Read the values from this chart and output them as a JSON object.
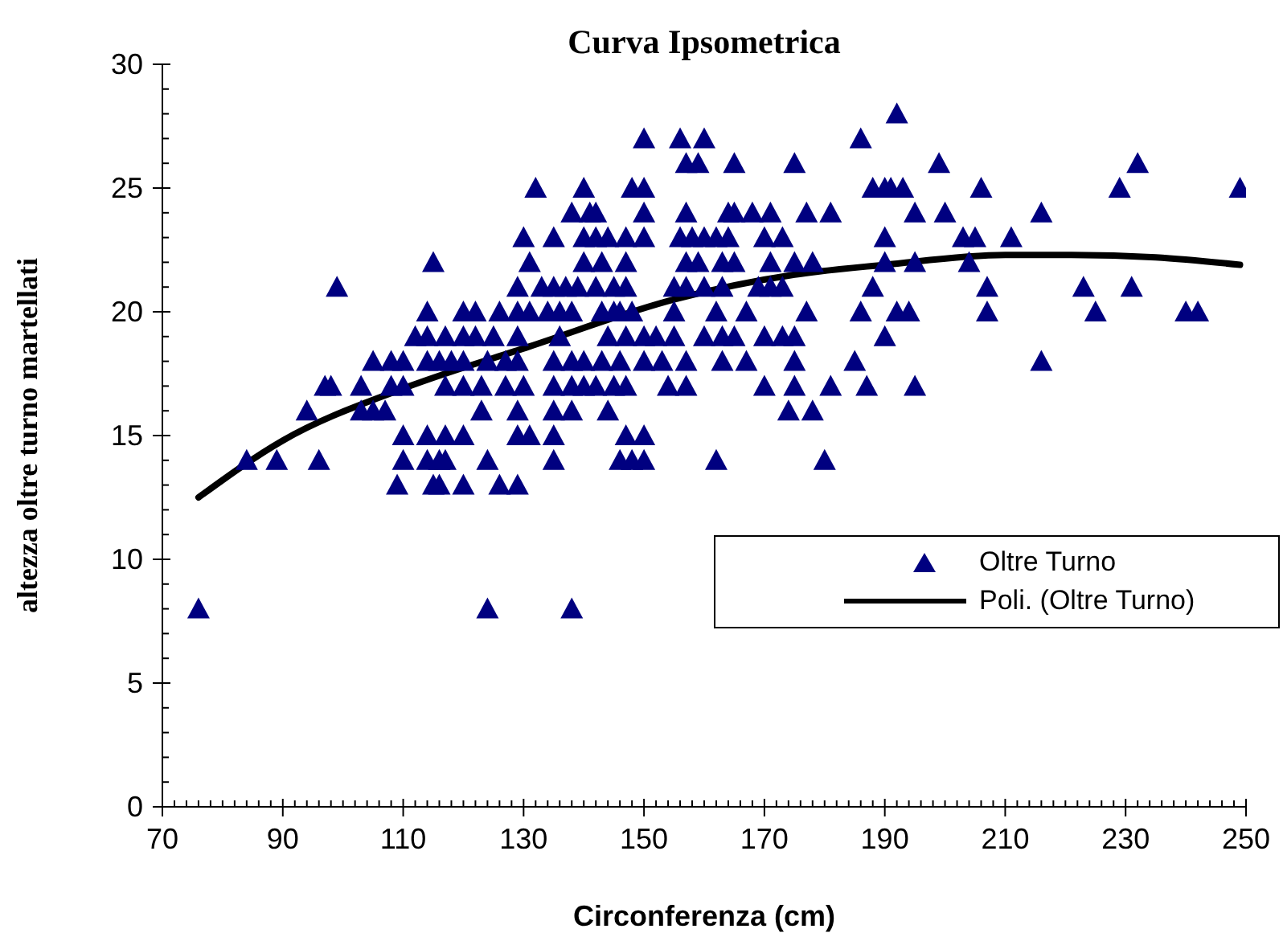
{
  "chart_data": {
    "type": "scatter",
    "title": "Curva Ipsometrica",
    "xlabel": "Circonferenza (cm)",
    "ylabel": "altezza oltre turno martellati",
    "xlim": [
      70,
      250
    ],
    "ylim": [
      0,
      30
    ],
    "xticks": [
      70,
      {
        "value": 72,
        "label": null
      },
      {
        "value": 74,
        "label": null
      },
      {
        "value": 76,
        "label": null
      },
      {
        "value": 78,
        "label": null
      },
      {
        "value": 80,
        "label": null
      },
      {
        "value": 82,
        "label": null
      },
      {
        "value": 84,
        "label": null
      },
      {
        "value": 86,
        "label": null
      },
      {
        "value": 88,
        "label": null
      },
      90,
      {
        "value": 92,
        "label": null
      },
      {
        "value": 94,
        "label": null
      },
      {
        "value": 96,
        "label": null
      },
      {
        "value": 98,
        "label": null
      },
      {
        "value": 100,
        "label": null
      },
      {
        "value": 102,
        "label": null
      },
      {
        "value": 104,
        "label": null
      },
      {
        "value": 106,
        "label": null
      },
      {
        "value": 108,
        "label": null
      },
      110,
      {
        "value": 112,
        "label": null
      },
      {
        "value": 114,
        "label": null
      },
      {
        "value": 116,
        "label": null
      },
      {
        "value": 118,
        "label": null
      },
      {
        "value": 120,
        "label": null
      },
      {
        "value": 122,
        "label": null
      },
      {
        "value": 124,
        "label": null
      },
      {
        "value": 126,
        "label": null
      },
      {
        "value": 128,
        "label": null
      },
      130,
      {
        "value": 132,
        "label": null
      },
      {
        "value": 134,
        "label": null
      },
      {
        "value": 136,
        "label": null
      },
      {
        "value": 138,
        "label": null
      },
      {
        "value": 140,
        "label": null
      },
      {
        "value": 142,
        "label": null
      },
      {
        "value": 144,
        "label": null
      },
      {
        "value": 146,
        "label": null
      },
      {
        "value": 148,
        "label": null
      },
      150,
      {
        "value": 152,
        "label": null
      },
      {
        "value": 154,
        "label": null
      },
      {
        "value": 156,
        "label": null
      },
      {
        "value": 158,
        "label": null
      },
      {
        "value": 160,
        "label": null
      },
      {
        "value": 162,
        "label": null
      },
      {
        "value": 164,
        "label": null
      },
      {
        "value": 166,
        "label": null
      },
      {
        "value": 168,
        "label": null
      },
      170,
      {
        "value": 172,
        "label": null
      },
      {
        "value": 174,
        "label": null
      },
      {
        "value": 176,
        "label": null
      },
      {
        "value": 178,
        "label": null
      },
      {
        "value": 180,
        "label": null
      },
      {
        "value": 182,
        "label": null
      },
      {
        "value": 184,
        "label": null
      },
      {
        "value": 186,
        "label": null
      },
      {
        "value": 188,
        "label": null
      },
      190,
      {
        "value": 192,
        "label": null
      },
      {
        "value": 194,
        "label": null
      },
      {
        "value": 196,
        "label": null
      },
      {
        "value": 198,
        "label": null
      },
      {
        "value": 200,
        "label": null
      },
      {
        "value": 202,
        "label": null
      },
      {
        "value": 204,
        "label": null
      },
      {
        "value": 206,
        "label": null
      },
      {
        "value": 208,
        "label": null
      },
      210,
      {
        "value": 212,
        "label": null
      },
      {
        "value": 214,
        "label": null
      },
      {
        "value": 216,
        "label": null
      },
      {
        "value": 218,
        "label": null
      },
      {
        "value": 220,
        "label": null
      },
      {
        "value": 222,
        "label": null
      },
      {
        "value": 224,
        "label": null
      },
      {
        "value": 226,
        "label": null
      },
      {
        "value": 228,
        "label": null
      },
      230,
      {
        "value": 232,
        "label": null
      },
      {
        "value": 234,
        "label": null
      },
      {
        "value": 236,
        "label": null
      },
      {
        "value": 238,
        "label": null
      },
      {
        "value": 240,
        "label": null
      },
      {
        "value": 242,
        "label": null
      },
      {
        "value": 244,
        "label": null
      },
      {
        "value": 246,
        "label": null
      },
      {
        "value": 248,
        "label": null
      },
      250
    ],
    "yticks": [
      0,
      {
        "value": 1,
        "label": null
      },
      {
        "value": 2,
        "label": null
      },
      {
        "value": 3,
        "label": null
      },
      {
        "value": 4,
        "label": null
      },
      5,
      {
        "value": 6,
        "label": null
      },
      {
        "value": 7,
        "label": null
      },
      {
        "value": 8,
        "label": null
      },
      {
        "value": 9,
        "label": null
      },
      10,
      {
        "value": 11,
        "label": null
      },
      {
        "value": 12,
        "label": null
      },
      {
        "value": 13,
        "label": null
      },
      {
        "value": 14,
        "label": null
      },
      15,
      {
        "value": 16,
        "label": null
      },
      {
        "value": 17,
        "label": null
      },
      {
        "value": 18,
        "label": null
      },
      {
        "value": 19,
        "label": null
      },
      20,
      {
        "value": 21,
        "label": null
      },
      {
        "value": 22,
        "label": null
      },
      {
        "value": 23,
        "label": null
      },
      {
        "value": 24,
        "label": null
      },
      25,
      {
        "value": 26,
        "label": null
      },
      {
        "value": 27,
        "label": null
      },
      {
        "value": 28,
        "label": null
      },
      {
        "value": 29,
        "label": null
      },
      30
    ],
    "grid": false,
    "legend": "right",
    "series": [
      {
        "name": "Oltre Turno",
        "type": "scatter",
        "marker": "triangle",
        "color": "#000080",
        "x": [
          76,
          124,
          138,
          109,
          115,
          116,
          120,
          126,
          129,
          84,
          89,
          96,
          110,
          114,
          116,
          117,
          124,
          135,
          146,
          148,
          150,
          162,
          180,
          110,
          114,
          117,
          120,
          129,
          131,
          135,
          147,
          150,
          94,
          103,
          105,
          107,
          123,
          129,
          135,
          138,
          144,
          174,
          178,
          97,
          98,
          103,
          108,
          110,
          117,
          120,
          123,
          127,
          130,
          135,
          138,
          140,
          142,
          145,
          147,
          154,
          157,
          170,
          175,
          181,
          187,
          195,
          105,
          108,
          110,
          114,
          116,
          118,
          120,
          124,
          127,
          129,
          135,
          138,
          140,
          143,
          146,
          150,
          153,
          157,
          163,
          167,
          175,
          185,
          216,
          112,
          114,
          117,
          120,
          122,
          125,
          129,
          136,
          144,
          147,
          150,
          152,
          155,
          160,
          163,
          165,
          170,
          173,
          175,
          190,
          114,
          120,
          122,
          126,
          129,
          131,
          134,
          136,
          138,
          143,
          145,
          146,
          148,
          155,
          162,
          167,
          177,
          186,
          192,
          194,
          207,
          225,
          240,
          242,
          99,
          129,
          133,
          135,
          137,
          139,
          142,
          145,
          147,
          155,
          157,
          160,
          163,
          169,
          171,
          173,
          188,
          207,
          223,
          231,
          115,
          131,
          140,
          143,
          147,
          157,
          159,
          163,
          165,
          171,
          175,
          178,
          190,
          195,
          204,
          130,
          135,
          140,
          142,
          144,
          147,
          150,
          156,
          158,
          160,
          162,
          164,
          170,
          173,
          190,
          203,
          205,
          211,
          138,
          141,
          142,
          150,
          157,
          164,
          165,
          168,
          171,
          177,
          181,
          195,
          200,
          216,
          132,
          140,
          148,
          150,
          188,
          190,
          191,
          193,
          206,
          229,
          249,
          157,
          159,
          165,
          175,
          199,
          232,
          150,
          156,
          160,
          186,
          192
        ],
        "values": [
          8,
          8,
          8,
          13,
          13,
          13,
          13,
          13,
          13,
          14,
          14,
          14,
          14,
          14,
          14,
          14,
          14,
          14,
          14,
          14,
          14,
          14,
          14,
          15,
          15,
          15,
          15,
          15,
          15,
          15,
          15,
          15,
          16,
          16,
          16,
          16,
          16,
          16,
          16,
          16,
          16,
          16,
          16,
          17,
          17,
          17,
          17,
          17,
          17,
          17,
          17,
          17,
          17,
          17,
          17,
          17,
          17,
          17,
          17,
          17,
          17,
          17,
          17,
          17,
          17,
          17,
          18,
          18,
          18,
          18,
          18,
          18,
          18,
          18,
          18,
          18,
          18,
          18,
          18,
          18,
          18,
          18,
          18,
          18,
          18,
          18,
          18,
          18,
          18,
          19,
          19,
          19,
          19,
          19,
          19,
          19,
          19,
          19,
          19,
          19,
          19,
          19,
          19,
          19,
          19,
          19,
          19,
          19,
          19,
          20,
          20,
          20,
          20,
          20,
          20,
          20,
          20,
          20,
          20,
          20,
          20,
          20,
          20,
          20,
          20,
          20,
          20,
          20,
          20,
          20,
          20,
          20,
          20,
          21,
          21,
          21,
          21,
          21,
          21,
          21,
          21,
          21,
          21,
          21,
          21,
          21,
          21,
          21,
          21,
          21,
          21,
          21,
          21,
          22,
          22,
          22,
          22,
          22,
          22,
          22,
          22,
          22,
          22,
          22,
          22,
          22,
          22,
          22,
          23,
          23,
          23,
          23,
          23,
          23,
          23,
          23,
          23,
          23,
          23,
          23,
          23,
          23,
          23,
          23,
          23,
          23,
          24,
          24,
          24,
          24,
          24,
          24,
          24,
          24,
          24,
          24,
          24,
          24,
          24,
          24,
          25,
          25,
          25,
          25,
          25,
          25,
          25,
          25,
          25,
          25,
          25,
          26,
          26,
          26,
          26,
          26,
          26,
          27,
          27,
          27,
          27,
          28
        ]
      },
      {
        "name": "Poli. (Oltre Turno)",
        "type": "line",
        "line_style": "solid",
        "marker": "none",
        "color": "#000000",
        "x": [
          76,
          90,
          110,
          131,
          155,
          175,
          190,
          210,
          221,
          235,
          249
        ],
        "values": [
          12.5,
          14.8,
          16.9,
          18.6,
          20.5,
          21.5,
          21.9,
          22.3,
          22.3,
          22.2,
          21.9
        ]
      }
    ]
  }
}
